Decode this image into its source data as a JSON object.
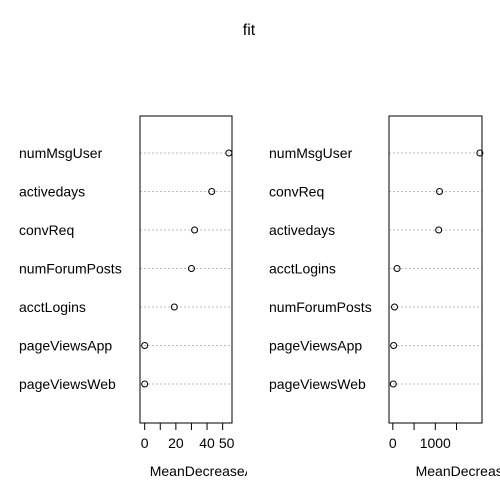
{
  "title": "fit",
  "chart_data": [
    {
      "type": "scatter",
      "xlabel": "MeanDecreaseAccuracy",
      "categories": [
        "numMsgUser",
        "activedays",
        "convReq",
        "numForumPosts",
        "acctLogins",
        "pageViewsApp",
        "pageViewsWeb"
      ],
      "values": [
        54,
        43,
        32,
        30,
        19,
        0,
        0
      ],
      "xlim": [
        -3,
        56
      ],
      "xticks": [
        "0",
        "20",
        "40"
      ],
      "xtick_values": [
        0,
        20,
        40
      ],
      "minor_xticks": [
        10,
        30,
        50
      ],
      "extra_tick_labels": [
        {
          "value": 50,
          "label": "50"
        }
      ],
      "grid": "horizontal dotted"
    },
    {
      "type": "scatter",
      "xlabel": "MeanDecreaseGini",
      "categories": [
        "numMsgUser",
        "convReq",
        "activedays",
        "acctLogins",
        "numForumPosts",
        "pageViewsApp",
        "pageViewsWeb"
      ],
      "values": [
        2050,
        1100,
        1080,
        100,
        40,
        20,
        10
      ],
      "xlim": [
        -90,
        2100
      ],
      "xticks": [
        "0",
        "1000"
      ],
      "xtick_values": [
        0,
        1000
      ],
      "minor_xticks": [
        500,
        1500
      ],
      "grid": "horizontal dotted"
    }
  ]
}
